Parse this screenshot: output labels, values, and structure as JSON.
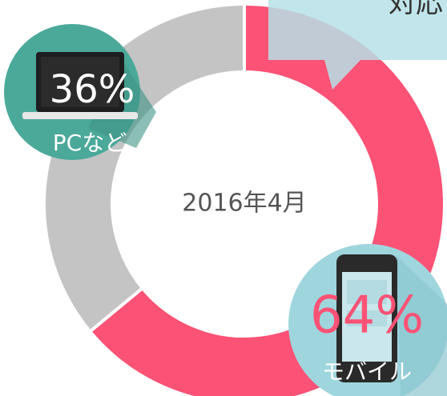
{
  "chart_data": {
    "type": "pie",
    "donut": true,
    "center_label": "2016年4月",
    "annotation": "対応",
    "categories": [
      "モバイル",
      "PCなど"
    ],
    "values": [
      64,
      36
    ],
    "value_labels": [
      "64%",
      "36%"
    ],
    "colors": [
      "#fb5275",
      "#c4c4c4"
    ],
    "label_colors": [
      "#fb5275",
      "#ffffff"
    ]
  }
}
